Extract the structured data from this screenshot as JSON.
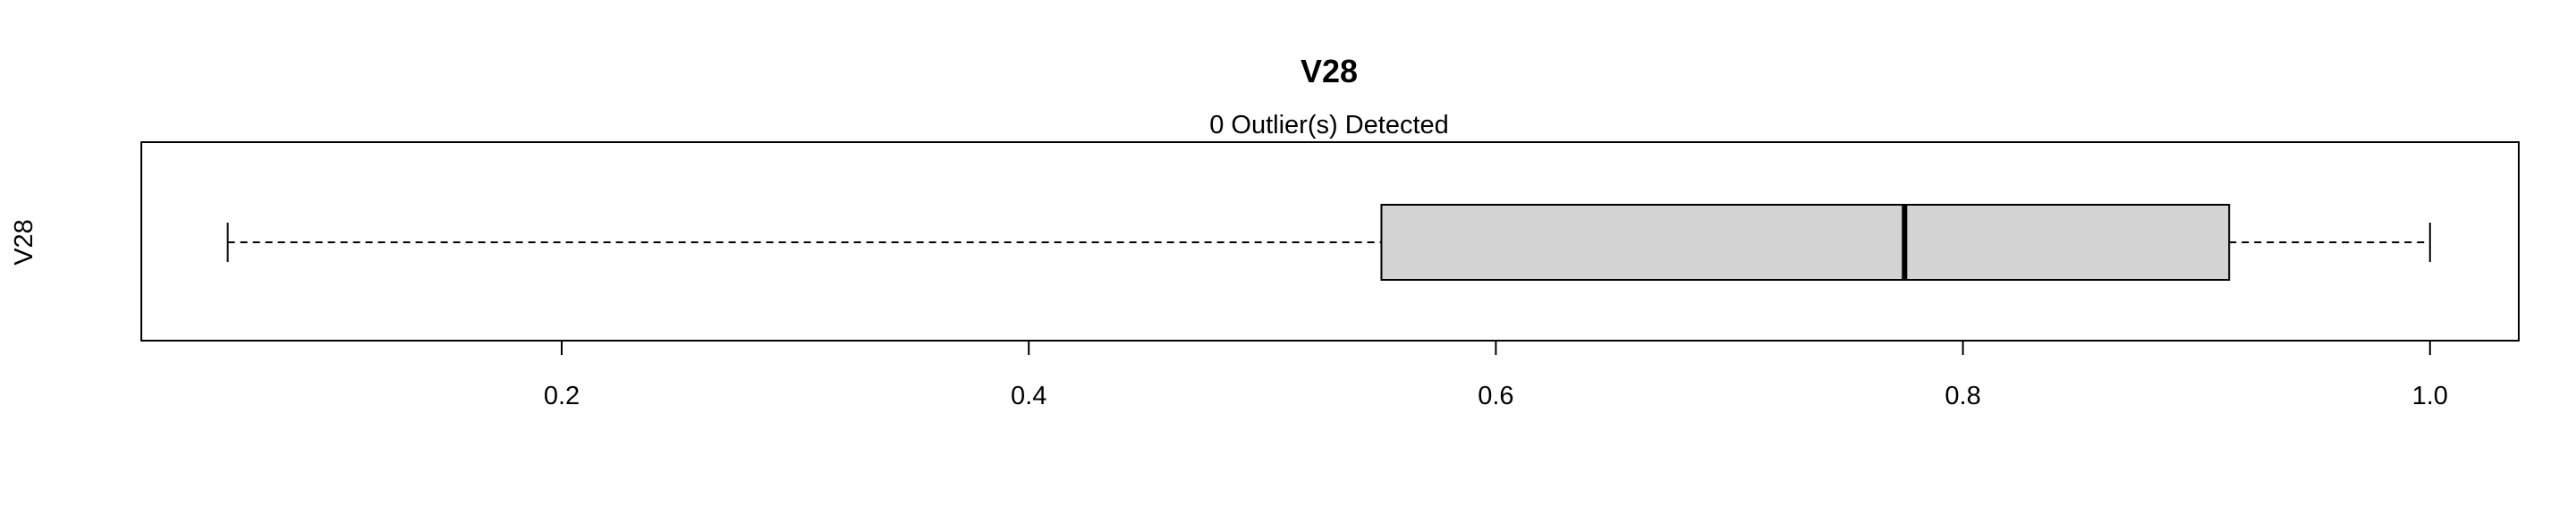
{
  "chart_data": {
    "type": "boxplot",
    "orientation": "horizontal",
    "title": "V28",
    "subtitle": "0 Outlier(s) Detected",
    "ylabel": "V28",
    "xlim": [
      0.02,
      1.038
    ],
    "x_ticks": [
      0.2,
      0.4,
      0.6,
      0.8,
      1.0
    ],
    "x_tick_labels": [
      "0.2",
      "0.4",
      "0.6",
      "0.8",
      "1.0"
    ],
    "box": {
      "whisker_low": 0.057,
      "q1": 0.551,
      "median": 0.775,
      "q3": 0.914,
      "whisker_high": 1.0
    },
    "outliers": [],
    "box_fill": "#d3d3d3",
    "line_color": "#000000"
  }
}
